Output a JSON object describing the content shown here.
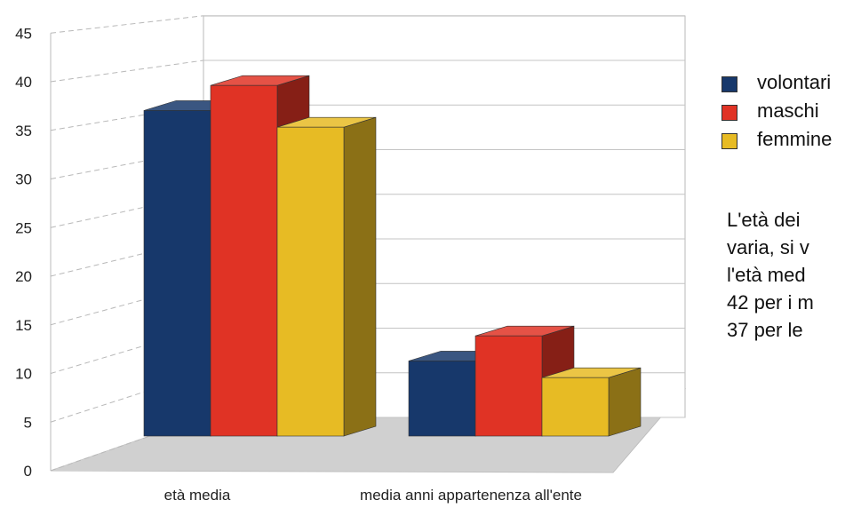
{
  "chart_data": {
    "type": "bar",
    "categories": [
      "età media",
      "media anni appartenenza all'ente"
    ],
    "series": [
      {
        "name": "volontari",
        "values": [
          39,
          9
        ],
        "color": "#17386b"
      },
      {
        "name": "maschi",
        "values": [
          42,
          12
        ],
        "color": "#e03325"
      },
      {
        "name": "femmine",
        "values": [
          37,
          7
        ],
        "color": "#e7bb24"
      }
    ],
    "ylim": [
      0,
      45
    ],
    "yticks": [
      "0",
      "5",
      "10",
      "15",
      "20",
      "25",
      "30",
      "35",
      "40",
      "45"
    ],
    "grid": true,
    "legend": "right",
    "annotation_lines": [
      "L'età dei",
      "varia, si v",
      "l'età med",
      "42 per i m",
      "37 per le"
    ]
  }
}
